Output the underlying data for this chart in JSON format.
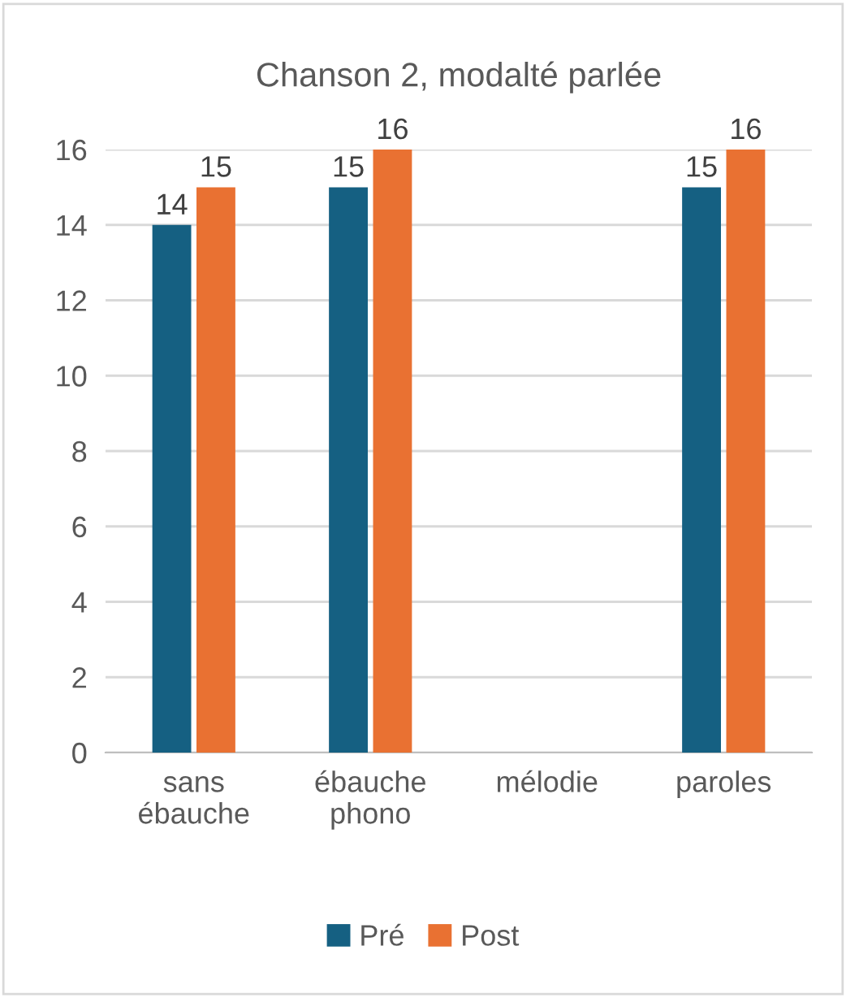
{
  "chart_data": {
    "type": "bar",
    "title": "Chanson 2, modalté parlée",
    "categories": [
      "sans\nébauche",
      "ébauche\nphono",
      "mélodie",
      "paroles"
    ],
    "series": [
      {
        "name": "Pré",
        "color": "#156082",
        "values": [
          14,
          15,
          null,
          15
        ]
      },
      {
        "name": "Post",
        "color": "#e97132",
        "values": [
          15,
          16,
          null,
          16
        ]
      }
    ],
    "ylim": [
      0,
      16
    ],
    "yticks": [
      0,
      2,
      4,
      6,
      8,
      10,
      12,
      14,
      16
    ],
    "grid": "y",
    "legend": "bottom",
    "data_labels": true
  }
}
